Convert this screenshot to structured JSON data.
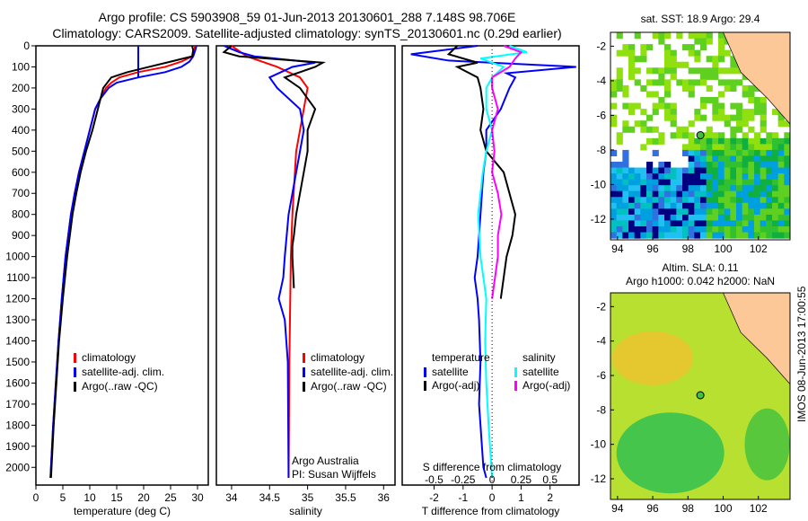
{
  "title_line1": "Argo profile: CS 5903908_59 01-Jun-2013 20130601_288 7.148S 98.706E",
  "title_line2": "Climatology: CARS2009. Satellite-adjusted climatology: synTS_20130601.nc (0.29d earlier)",
  "side_stamp": "IMOS 08-Jun-2013 17:00:55",
  "colors": {
    "clim": "#ff0000",
    "sat": "#0000ff",
    "argo": "#000000",
    "ssat": "#00ffff",
    "sargo": "#ff00ff",
    "land": "#fdc898"
  },
  "chart_data": [
    {
      "type": "line",
      "name": "temperature",
      "xlabel": "temperature (deg C)",
      "ylim": [
        2050,
        0
      ],
      "xlim": [
        0,
        32
      ],
      "xticks": [
        0,
        5,
        10,
        15,
        20,
        25,
        30
      ],
      "yticks": [
        0,
        100,
        200,
        300,
        400,
        500,
        600,
        700,
        800,
        900,
        1000,
        1100,
        1200,
        1300,
        1400,
        1500,
        1600,
        1700,
        1800,
        1900,
        2000
      ],
      "legend": [
        "climatology",
        "satellite-adj. clim.",
        "Argo(..raw -QC)"
      ],
      "series": [
        {
          "name": "climatology",
          "depth": [
            0,
            20,
            50,
            75,
            100,
            125,
            150,
            175,
            200,
            250,
            300,
            400,
            500,
            600,
            700,
            800,
            1000,
            1200,
            1400,
            1600,
            1800,
            2000,
            2050
          ],
          "values": [
            29.5,
            29.5,
            29,
            27,
            24,
            19,
            15.5,
            14,
            13,
            12,
            11,
            10,
            9,
            8,
            7.2,
            6.5,
            5.5,
            4.8,
            4.2,
            3.7,
            3.2,
            2.8,
            2.7
          ]
        },
        {
          "name": "satellite-adj. clim.",
          "depth": [
            0,
            20,
            50,
            75,
            100,
            125,
            150,
            175,
            200,
            250,
            300,
            400,
            500,
            600,
            700,
            800,
            1000,
            1200,
            1400,
            1600,
            1800,
            2000,
            2050
          ],
          "values": [
            29.8,
            29.6,
            29.2,
            28.5,
            27,
            24,
            19,
            15,
            13.5,
            12,
            11,
            10,
            9,
            8,
            7.2,
            6.5,
            5.5,
            4.8,
            4.2,
            3.7,
            3.2,
            2.8,
            2.7
          ]
        },
        {
          "name": "mld-marker",
          "depth": [
            0,
            150
          ],
          "values": [
            19,
            19
          ]
        },
        {
          "name": "Argo(..raw -QC)",
          "depth": [
            0,
            20,
            50,
            75,
            100,
            125,
            150,
            200,
            250,
            300,
            400,
            500,
            600,
            700,
            800,
            1000,
            1200,
            1400,
            1600,
            1800,
            2000,
            2050
          ],
          "values": [
            29,
            29.2,
            29,
            25,
            21,
            17,
            14,
            12.5,
            12,
            11.5,
            10.5,
            9.3,
            8.3,
            7.5,
            6.8,
            5.8,
            5,
            4.3,
            3.8,
            3.3,
            2.9,
            2.8
          ]
        }
      ]
    },
    {
      "type": "line",
      "name": "salinity",
      "xlabel": "salinity",
      "ylim": [
        2050,
        0
      ],
      "xlim": [
        33.8,
        36.15
      ],
      "xticks": [
        34,
        34.5,
        35,
        35.5,
        36
      ],
      "legend": [
        "climatology",
        "satellite-adj. clim.",
        "Argo(..raw -QC)"
      ],
      "annotations": [
        "Argo Australia",
        "PI: Susan Wijffels"
      ],
      "series": [
        {
          "name": "climatology",
          "depth": [
            0,
            50,
            100,
            150,
            200,
            300,
            500,
            800,
            1000,
            1500,
            2050
          ],
          "values": [
            34.0,
            34.2,
            34.6,
            34.9,
            35.0,
            34.95,
            34.85,
            34.8,
            34.78,
            34.76,
            34.75
          ]
        },
        {
          "name": "satellite-adj. clim.",
          "depth": [
            0,
            30,
            50,
            80,
            100,
            150,
            200,
            300,
            400,
            600,
            800,
            1000,
            1100,
            1200,
            1300,
            1500,
            2050
          ],
          "values": [
            33.9,
            34.1,
            34.3,
            35.1,
            34.8,
            34.5,
            34.6,
            34.9,
            34.95,
            34.85,
            34.75,
            34.7,
            34.68,
            34.62,
            34.7,
            34.74,
            34.75
          ]
        },
        {
          "name": "Argo(..raw -QC)",
          "depth": [
            0,
            30,
            50,
            80,
            100,
            150,
            200,
            250,
            300,
            400,
            500,
            600,
            700,
            800,
            900,
            950,
            1000,
            1150
          ],
          "values": [
            34.0,
            33.9,
            34.1,
            35.2,
            35.1,
            34.7,
            34.9,
            35.0,
            35.1,
            35.0,
            35.0,
            34.95,
            34.9,
            34.85,
            34.82,
            34.8,
            34.8,
            34.82
          ]
        }
      ]
    },
    {
      "type": "line",
      "name": "difference",
      "xlabel": "T difference from climatology",
      "x2label": "S difference from climatology",
      "ylim": [
        2050,
        0
      ],
      "xlim": [
        -3.1,
        3.0
      ],
      "xticks": [
        -2,
        -1,
        0,
        1,
        2
      ],
      "x2ticks": [
        -0.5,
        -0.25,
        0,
        0.25,
        0.5
      ],
      "s_scale": 4,
      "legend_t_title": "temperature",
      "legend_s_title": "salinity",
      "legend": [
        "satellite",
        "Argo(-adj)",
        "satellite",
        "Argo(-adj)"
      ],
      "series": [
        {
          "name": "T satellite",
          "kind": "T",
          "depth": [
            0,
            40,
            70,
            100,
            130,
            150,
            200,
            300,
            400,
            500,
            600,
            700,
            800,
            1000,
            1100,
            1200,
            1300,
            1500,
            1700,
            1900,
            2000,
            2050
          ],
          "values": [
            -0.5,
            -2.8,
            -1.5,
            2.9,
            0.5,
            0.8,
            0.6,
            0.3,
            -0.2,
            -0.2,
            -0.3,
            -0.35,
            -0.4,
            -0.5,
            -0.6,
            -0.5,
            -0.45,
            -0.4,
            -0.45,
            -0.35,
            -0.3,
            -0.2
          ]
        },
        {
          "name": "T Argo(-adj)",
          "kind": "T",
          "depth": [
            0,
            40,
            80,
            100,
            150,
            200,
            300,
            400,
            500,
            600,
            700,
            800,
            900,
            1000,
            1200
          ],
          "values": [
            -1.2,
            -1.5,
            -0.5,
            -1.2,
            -0.5,
            -0.4,
            -0.3,
            -0.4,
            -0.2,
            0.4,
            0.6,
            0.8,
            0.7,
            0.5,
            0.3
          ]
        },
        {
          "name": "S satellite",
          "kind": "S",
          "depth": [
            0,
            30,
            60,
            100,
            150,
            200,
            300,
            400,
            500,
            600,
            800,
            1000,
            1200,
            1400,
            1600,
            1800,
            2050
          ],
          "values": [
            0.15,
            0.3,
            -0.1,
            0.1,
            0.0,
            -0.05,
            -0.05,
            0.0,
            -0.05,
            -0.08,
            -0.12,
            -0.1,
            -0.05,
            -0.06,
            -0.05,
            -0.03,
            0.0
          ]
        },
        {
          "name": "S Argo(-adj)",
          "kind": "S",
          "depth": [
            0,
            30,
            60,
            100,
            150,
            200,
            300,
            400,
            500,
            600,
            700,
            800,
            900,
            1000,
            1200
          ],
          "values": [
            0.1,
            0.25,
            0.2,
            0.15,
            0.0,
            0.0,
            0.05,
            0.0,
            0.02,
            0.0,
            0.05,
            0.08,
            0.05,
            0.05,
            0.0
          ]
        }
      ]
    },
    {
      "type": "heatmap",
      "name": "sst-map",
      "title": "sat. SST: 18.9 Argo: 29.4",
      "xlim": [
        93.6,
        103.8
      ],
      "ylim": [
        -13.2,
        -1.2
      ],
      "xticks": [
        94,
        96,
        98,
        100,
        102
      ],
      "yticks": [
        -2,
        -4,
        -6,
        -8,
        -10,
        -12
      ],
      "argo_position": [
        98.706,
        -7.148
      ]
    },
    {
      "type": "heatmap",
      "name": "sla-map",
      "title1": "Altim. SLA: 0.11",
      "title2": "Argo h1000: 0.042 h2000: NaN",
      "xlim": [
        93.6,
        103.8
      ],
      "ylim": [
        -13.2,
        -1.2
      ],
      "xticks": [
        94,
        96,
        98,
        100,
        102
      ],
      "yticks": [
        -2,
        -4,
        -6,
        -8,
        -10,
        -12
      ],
      "argo_position": [
        98.706,
        -7.148
      ]
    }
  ]
}
